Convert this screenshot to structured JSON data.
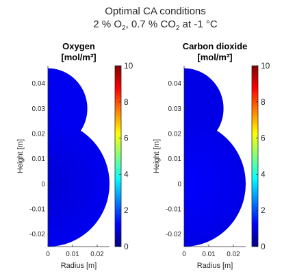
{
  "figure": {
    "title_line1": "Optimal CA conditions",
    "title_line2": {
      "o2_value": "2 % O",
      "o2_sub": "2",
      "co2_value": ",  0.7 % CO",
      "co2_sub": "2",
      "tail": "  at  -1 °C"
    }
  },
  "chart_data": [
    {
      "type": "heatmap",
      "title_line1": "Oxygen",
      "title_line2": "[mol/m³]",
      "xlabel": "Radius [m]",
      "ylabel": "Height [m]",
      "xlim": [
        0,
        0.025
      ],
      "ylim": [
        -0.025,
        0.047
      ],
      "xticks": [
        "0",
        "0.01",
        "0.02"
      ],
      "xtick_values": [
        0,
        0.01,
        0.02
      ],
      "yticks": [
        "0.04",
        "0.03",
        "0.02",
        "0.01",
        "0",
        "-0.01",
        "-0.02"
      ],
      "ytick_values": [
        0.04,
        0.03,
        0.02,
        0.01,
        0,
        -0.01,
        -0.02
      ],
      "colorbar": {
        "range": [
          0,
          10
        ],
        "ticks": [
          "0",
          "2",
          "4",
          "6",
          "8",
          "10"
        ],
        "tick_values": [
          0,
          2,
          4,
          6,
          8,
          10
        ]
      },
      "shape": {
        "lower_circle": {
          "center": [
            0,
            0
          ],
          "radius": 0.025
        },
        "upper_circle": {
          "center": [
            0,
            0.03
          ],
          "radius": 0.016
        }
      },
      "field": {
        "center_value": 0.85,
        "edge_value": 1.1
      },
      "colormap": "jet"
    },
    {
      "type": "heatmap",
      "title_line1": "Carbon dioxide",
      "title_line2": "[mol/m³]",
      "xlabel": "Radius [m]",
      "ylabel": "Height [m]",
      "xlim": [
        0,
        0.025
      ],
      "ylim": [
        -0.025,
        0.047
      ],
      "xticks": [
        "0",
        "0.01",
        "0.02"
      ],
      "xtick_values": [
        0,
        0.01,
        0.02
      ],
      "yticks": [
        "0.04",
        "0.03",
        "0.02",
        "0.01",
        "0",
        "-0.01",
        "-0.02"
      ],
      "ytick_values": [
        0.04,
        0.03,
        0.02,
        0.01,
        0,
        -0.01,
        -0.02
      ],
      "colorbar": {
        "range": [
          0,
          10
        ],
        "ticks": [
          "0",
          "2",
          "4",
          "6",
          "8",
          "10"
        ],
        "tick_values": [
          0,
          2,
          4,
          6,
          8,
          10
        ]
      },
      "shape": {
        "lower_circle": {
          "center": [
            0,
            0
          ],
          "radius": 0.025
        },
        "upper_circle": {
          "center": [
            0,
            0.03
          ],
          "radius": 0.016
        }
      },
      "field": {
        "center_value": 1.25,
        "edge_value": 1.0
      },
      "colormap": "jet"
    }
  ]
}
